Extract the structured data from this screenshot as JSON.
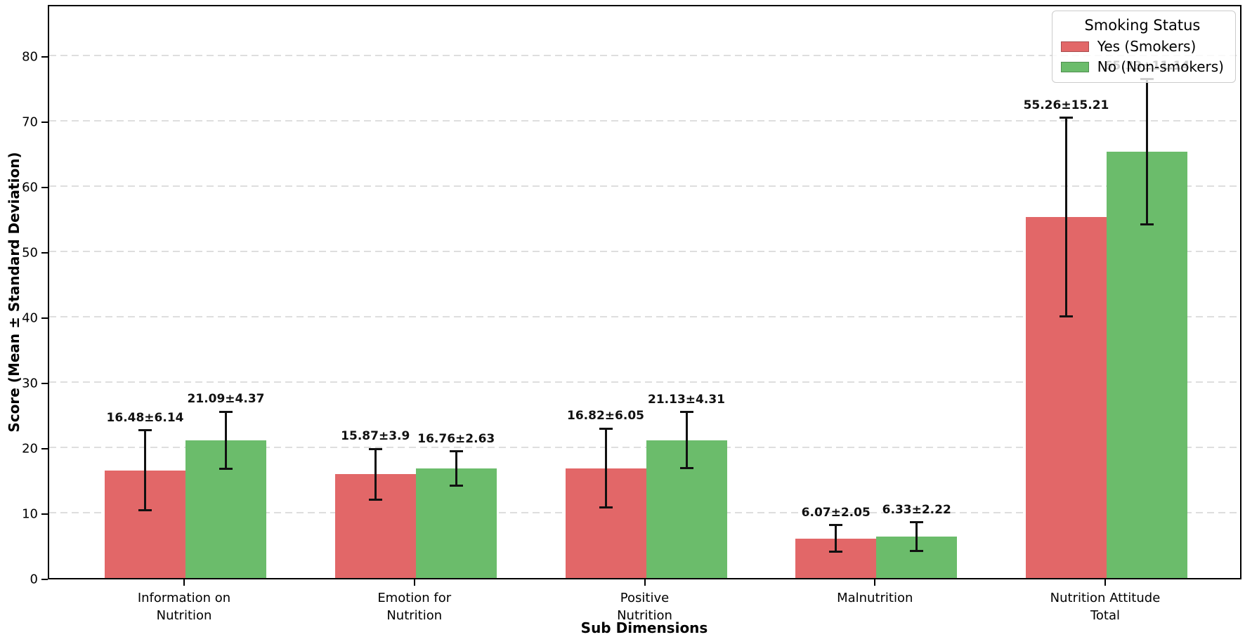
{
  "chart_data": {
    "type": "bar",
    "title": "",
    "xlabel": "Sub Dimensions",
    "ylabel": "Score (Mean ± Standard Deviation)",
    "categories": [
      "Information on\nNutrition",
      "Emotion for\nNutrition",
      "Positive\nNutrition",
      "Malnutrition",
      "Nutrition Attitude\nTotal"
    ],
    "series": [
      {
        "name": "Yes (Smokers)",
        "color": "#e26768",
        "means": [
          16.48,
          15.87,
          16.82,
          6.07,
          55.26
        ],
        "sds": [
          6.14,
          3.9,
          6.05,
          2.05,
          15.21
        ],
        "labels": [
          "16.48±6.14",
          "15.87±3.9",
          "16.82±6.05",
          "6.07±2.05",
          "55.26±15.21"
        ]
      },
      {
        "name": "No (Non-smokers)",
        "color": "#6bbc6b",
        "means": [
          21.09,
          16.76,
          21.13,
          6.33,
          65.33
        ],
        "sds": [
          4.37,
          2.63,
          4.31,
          2.22,
          11.14
        ],
        "labels": [
          "21.09±4.37",
          "16.76±2.63",
          "21.13±4.31",
          "6.33±2.22",
          "65.33±11.14"
        ]
      }
    ],
    "ylim": [
      0,
      88
    ],
    "yticks": [
      0,
      10,
      20,
      30,
      40,
      50,
      60,
      70,
      80
    ],
    "grid": "horizontal dashed",
    "error_bars": true,
    "colors": {
      "smokers": "#e26768",
      "non_smokers": "#6bbc6b",
      "error": "#111111",
      "grid": "#dedede"
    },
    "legend": {
      "title": "Smoking Status",
      "position": "upper right"
    }
  }
}
